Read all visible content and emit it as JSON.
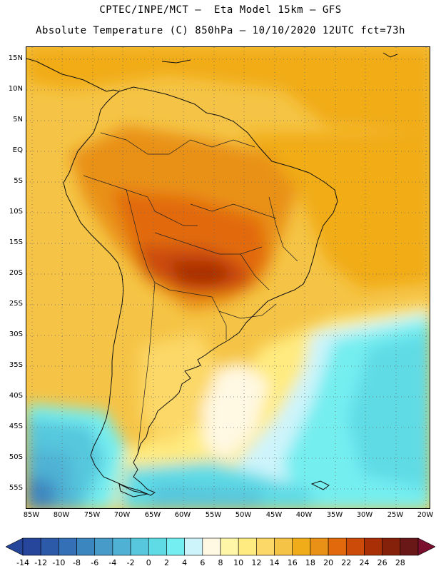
{
  "header": {
    "title_line1": "CPTEC/INPE/MCT –  Eta Model 15km – GFS",
    "title_line2": "Absolute Temperature (C) 850hPa – 10/10/2020 12UTC fct=73h"
  },
  "map": {
    "lat_labels": [
      "15N",
      "10N",
      "5N",
      "EQ",
      "5S",
      "10S",
      "15S",
      "20S",
      "25S",
      "30S",
      "35S",
      "40S",
      "45S",
      "50S",
      "55S"
    ],
    "lon_labels": [
      "85W",
      "80W",
      "75W",
      "70W",
      "65W",
      "60W",
      "55W",
      "50W",
      "45W",
      "40W",
      "35W",
      "30W",
      "25W",
      "20W"
    ],
    "field": "Absolute Temperature (C) 850hPa",
    "grid_style": "dotted"
  },
  "colorbar": {
    "labels": [
      "-14",
      "-12",
      "-10",
      "-8",
      "-6",
      "-4",
      "-2",
      "0",
      "2",
      "4",
      "6",
      "8",
      "10",
      "12",
      "14",
      "16",
      "18",
      "20",
      "22",
      "24",
      "26",
      "28"
    ],
    "colors": [
      "#26469b",
      "#2c5aa8",
      "#3470b5",
      "#3c86c0",
      "#469bc9",
      "#4fb2d4",
      "#56c7dd",
      "#5fdbe6",
      "#74eef0",
      "#cdf4fb",
      "#fff8e2",
      "#fff6a8",
      "#ffeb80",
      "#fcd868",
      "#f5c446",
      "#f1ac19",
      "#e99116",
      "#e26a0c",
      "#cc4b09",
      "#a82f06",
      "#85200a",
      "#6a1718"
    ],
    "under_color": "#26469b",
    "over_color": "#7a0f2e"
  }
}
